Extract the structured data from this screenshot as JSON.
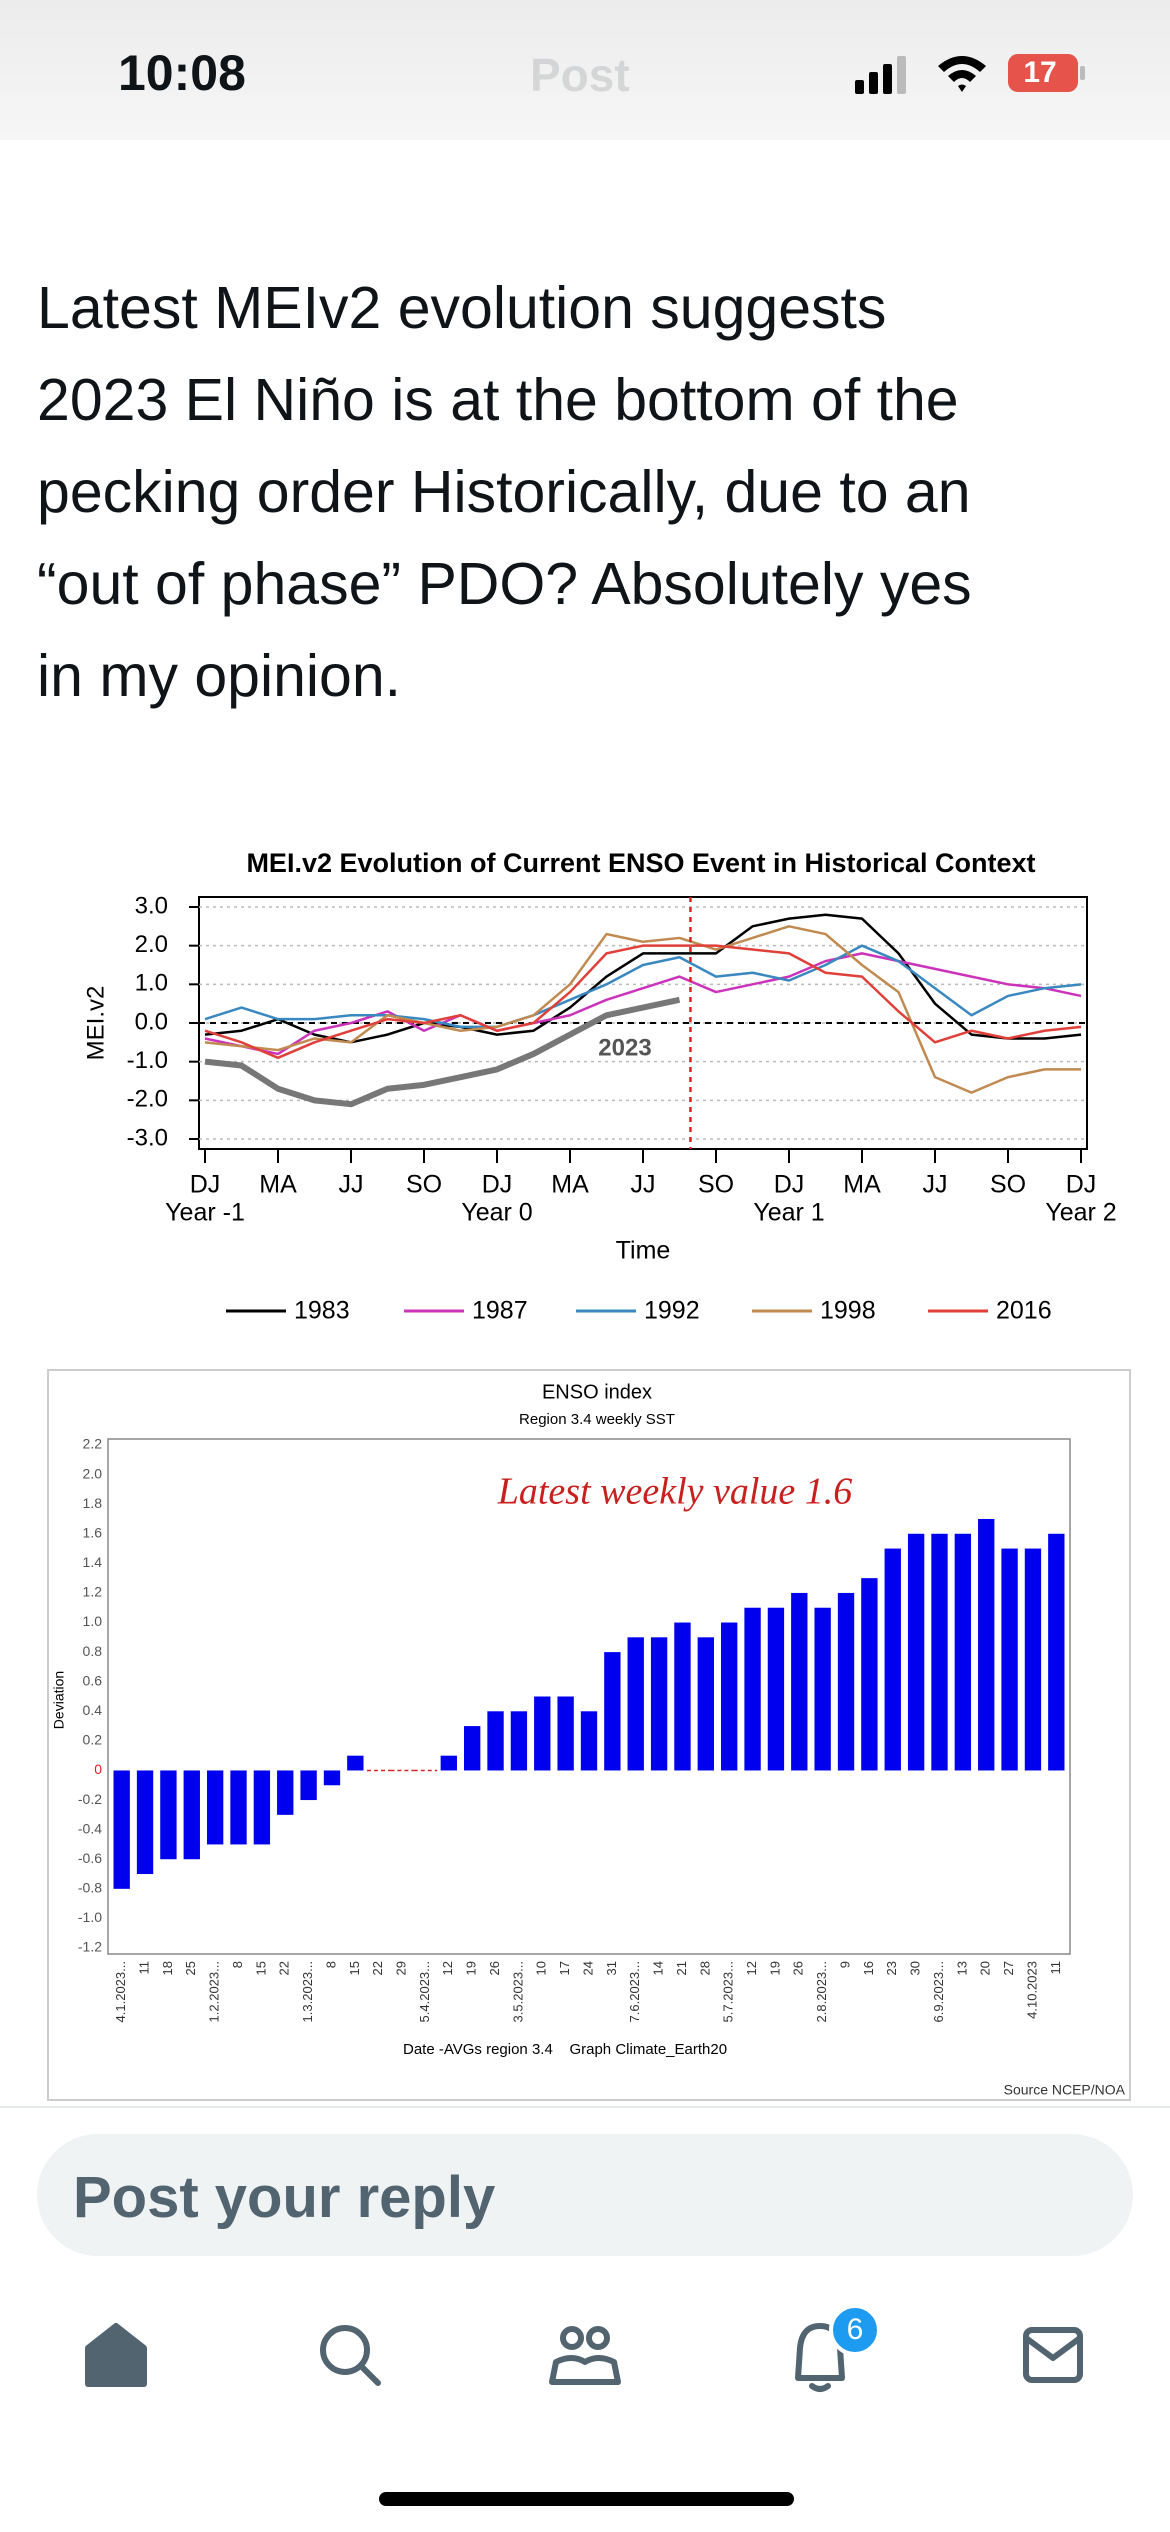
{
  "status_bar": {
    "time": "10:08",
    "battery": "17"
  },
  "header": {
    "title": "Post"
  },
  "post": {
    "lines": [
      "Latest MEIv2 evolution suggests",
      "2023 El Niño is at the bottom of the",
      "pecking order Historically, due to an",
      "“out of phase” PDO? Absolutely yes",
      "in my opinion."
    ]
  },
  "chart_data": [
    {
      "type": "line",
      "title": "MEI.v2 Evolution of Current ENSO Event in Historical Context",
      "ylabel": "MEI.v2",
      "xlabel": "Time",
      "x": [
        0,
        1,
        2,
        3,
        4,
        5,
        6,
        7,
        8,
        9,
        10,
        11,
        12,
        13,
        14,
        15,
        16,
        17,
        18,
        19,
        20,
        21,
        22,
        23,
        24
      ],
      "xlim": [
        0,
        24
      ],
      "xticks": [
        {
          "value": 0,
          "label": "DJ"
        },
        {
          "value": 2,
          "label": "MA"
        },
        {
          "value": 4,
          "label": "JJ"
        },
        {
          "value": 6,
          "label": "SO"
        },
        {
          "value": 8,
          "label": "DJ"
        },
        {
          "value": 10,
          "label": "MA"
        },
        {
          "value": 12,
          "label": "JJ"
        },
        {
          "value": 14,
          "label": "SO"
        },
        {
          "value": 16,
          "label": "DJ"
        },
        {
          "value": 18,
          "label": "MA"
        },
        {
          "value": 20,
          "label": "JJ"
        },
        {
          "value": 22,
          "label": "SO"
        },
        {
          "value": 24,
          "label": "DJ"
        }
      ],
      "year_labels": [
        {
          "value": 0,
          "label": "Year -1"
        },
        {
          "value": 8,
          "label": "Year 0"
        },
        {
          "value": 16,
          "label": "Year 1"
        },
        {
          "value": 24,
          "label": "Year 2"
        }
      ],
      "ylim": [
        -3,
        3
      ],
      "yticks": [
        {
          "value": 3,
          "label": "3.0"
        },
        {
          "value": 2,
          "label": "2.0"
        },
        {
          "value": 1,
          "label": "1.0"
        },
        {
          "value": 0,
          "label": "0.0"
        },
        {
          "value": -1,
          "label": "-1.0"
        },
        {
          "value": -2,
          "label": "-2.0"
        },
        {
          "value": -3,
          "label": "-3.0"
        }
      ],
      "grid": true,
      "series": [
        {
          "name": "1983",
          "color": "#000000",
          "values": [
            -0.3,
            -0.2,
            0.1,
            -0.3,
            -0.5,
            -0.3,
            0,
            -0.1,
            -0.3,
            -0.2,
            0.4,
            1.2,
            1.8,
            1.8,
            1.8,
            2.5,
            2.7,
            2.8,
            2.7,
            1.8,
            0.5,
            -0.3,
            -0.4,
            -0.4,
            -0.3
          ]
        },
        {
          "name": "1987",
          "color": "#cc33bb",
          "values": [
            -0.4,
            -0.6,
            -0.8,
            -0.2,
            0,
            0.3,
            -0.2,
            0.2,
            -0.2,
            0,
            0.2,
            0.6,
            0.9,
            1.2,
            0.8,
            1.0,
            1.2,
            1.6,
            1.8,
            1.6,
            1.4,
            1.2,
            1.0,
            0.9,
            0.7
          ]
        },
        {
          "name": "1992",
          "color": "#3a88c0",
          "values": [
            0.1,
            0.4,
            0.1,
            0.1,
            0.2,
            0.2,
            0.1,
            -0.1,
            -0.1,
            0.2,
            0.6,
            1.0,
            1.5,
            1.7,
            1.2,
            1.3,
            1.1,
            1.5,
            2.0,
            1.6,
            0.9,
            0.2,
            0.7,
            0.9,
            1.0
          ]
        },
        {
          "name": "1998",
          "color": "#c08a50",
          "values": [
            -0.5,
            -0.6,
            -0.7,
            -0.4,
            -0.5,
            0.2,
            0,
            -0.2,
            -0.1,
            0.2,
            1.0,
            2.3,
            2.1,
            2.2,
            1.9,
            2.2,
            2.5,
            2.3,
            1.5,
            0.8,
            -1.4,
            -1.8,
            -1.4,
            -1.2,
            -1.2
          ]
        },
        {
          "name": "2016",
          "color": "#e0403a",
          "values": [
            -0.2,
            -0.5,
            -0.9,
            -0.5,
            -0.2,
            0.1,
            0,
            0.2,
            -0.2,
            0,
            0.8,
            1.8,
            2.0,
            2.0,
            2.0,
            1.9,
            1.8,
            1.3,
            1.2,
            0.3,
            -0.5,
            -0.2,
            -0.4,
            -0.2,
            -0.1
          ]
        }
      ],
      "current": {
        "label": "2023",
        "color": "#777777",
        "values": [
          -1.0,
          -1.1,
          -1.7,
          -2.0,
          -2.1,
          -1.7,
          -1.6,
          -1.4,
          -1.2,
          -0.8,
          -0.3,
          0.2,
          0.4,
          0.6,
          null,
          null,
          null,
          null,
          null,
          null,
          null,
          null,
          null,
          null,
          null
        ]
      },
      "marker": 13.3,
      "marker_color": "#dd2222"
    },
    {
      "type": "bar",
      "title": "ENSO index",
      "subtitle": "Region 3.4 weekly SST",
      "annotation": "Latest weekly value 1.6",
      "ylabel": "Deviation",
      "xlabel": "Date -AVGs region 3.4    Graph Climate_Earth20",
      "source": "Source NCEP/NOA",
      "color": "#0000ee",
      "categories": [
        "4.1.2023...",
        "11",
        "18",
        "25",
        "1.2.2023...",
        "8",
        "15",
        "22",
        "1.3.2023...",
        "8",
        "15",
        "22",
        "29",
        "5.4.2023...",
        "12",
        "19",
        "26",
        "3.5.2023...",
        "10",
        "17",
        "24",
        "31",
        "7.6.2023...",
        "14",
        "21",
        "28",
        "5.7.2023...",
        "12",
        "19",
        "26",
        "2.8.2023...",
        "9",
        "16",
        "23",
        "30",
        "6.9.2023...",
        "13",
        "20",
        "27",
        "4.10.2023",
        "11"
      ],
      "values": [
        -0.8,
        -0.7,
        -0.6,
        -0.6,
        -0.5,
        -0.5,
        -0.5,
        -0.3,
        -0.2,
        -0.1,
        0.1,
        null,
        null,
        null,
        0.1,
        0.3,
        0.4,
        0.4,
        0.5,
        0.5,
        0.4,
        0.8,
        0.9,
        0.9,
        1.0,
        0.9,
        1.0,
        1.1,
        1.1,
        1.2,
        1.1,
        1.2,
        1.3,
        1.5,
        1.6,
        1.6,
        1.6,
        1.7,
        1.5,
        1.5,
        1.6
      ],
      "ylim": [
        -1.2,
        2.2
      ],
      "yticks": [
        2.2,
        {
          "value": 2,
          "label": "2.0"
        },
        1.8,
        1.6,
        1.4,
        1.2,
        {
          "value": 1,
          "label": "1.0"
        },
        0.8,
        0.6,
        0.4,
        0.2,
        0,
        -0.2,
        -0.4,
        -0.6,
        -0.8,
        {
          "value": -1,
          "label": "-1.0"
        },
        -1.2
      ]
    }
  ],
  "reply": {
    "placeholder": "Post your reply"
  },
  "tabs": {
    "notifications_badge": "6"
  }
}
